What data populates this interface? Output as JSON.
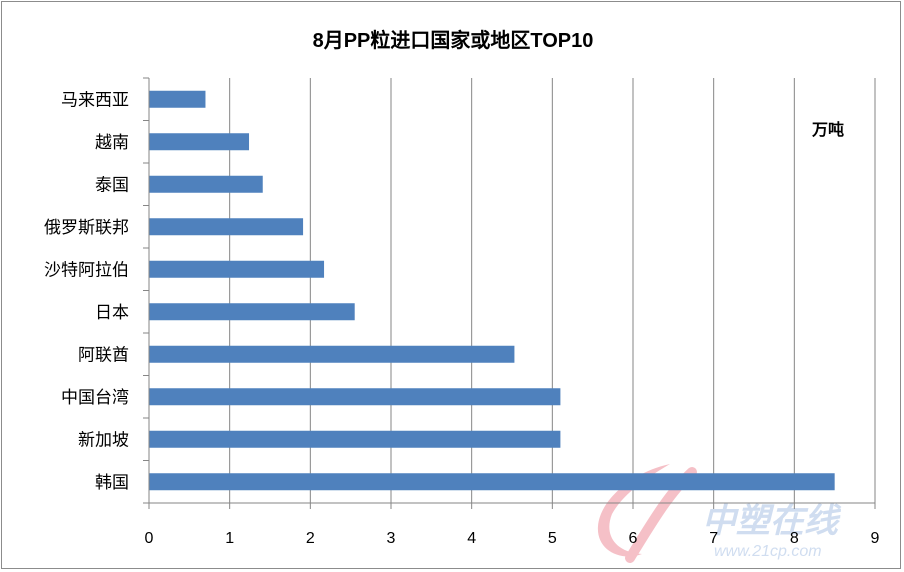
{
  "chart_data": {
    "type": "bar",
    "orientation": "horizontal",
    "title": "8月PP粒进口国家或地区TOP10",
    "unit_label": "万吨",
    "categories": [
      "马来西亚",
      "越南",
      "泰国",
      "俄罗斯联邦",
      "沙特阿拉伯",
      "日本",
      "阿联酋",
      "中国台湾",
      "新加坡",
      "韩国"
    ],
    "values": [
      0.7,
      1.24,
      1.41,
      1.91,
      2.17,
      2.55,
      4.53,
      5.1,
      5.1,
      8.5
    ],
    "xlim": [
      0,
      9
    ],
    "xticks": [
      "0",
      "1",
      "2",
      "3",
      "4",
      "5",
      "6",
      "7",
      "8",
      "9"
    ],
    "grid": "vertical",
    "bar_color": "#4f81bd"
  },
  "watermark": {
    "text": "中塑在线",
    "url": "www.21cp.com",
    "logo_color": "#f4b6be"
  }
}
